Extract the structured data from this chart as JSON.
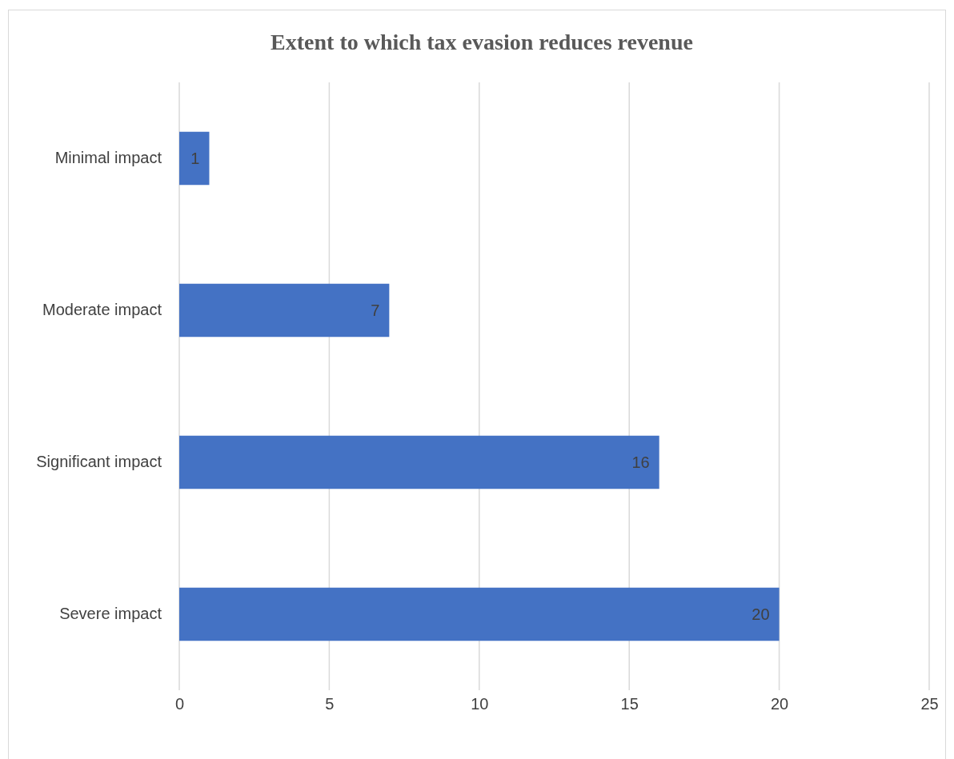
{
  "chart_data": {
    "type": "bar",
    "orientation": "horizontal",
    "title": "Extent to which tax evasion reduces revenue",
    "categories": [
      "Minimal impact",
      "Moderate impact",
      "Significant impact",
      "Severe impact"
    ],
    "values": [
      1,
      7,
      16,
      20
    ],
    "color": "#4472c4",
    "xlim": [
      0,
      25
    ],
    "xticks": [
      0,
      5,
      10,
      15,
      20,
      25
    ],
    "grid": "x",
    "data_labels": true
  }
}
